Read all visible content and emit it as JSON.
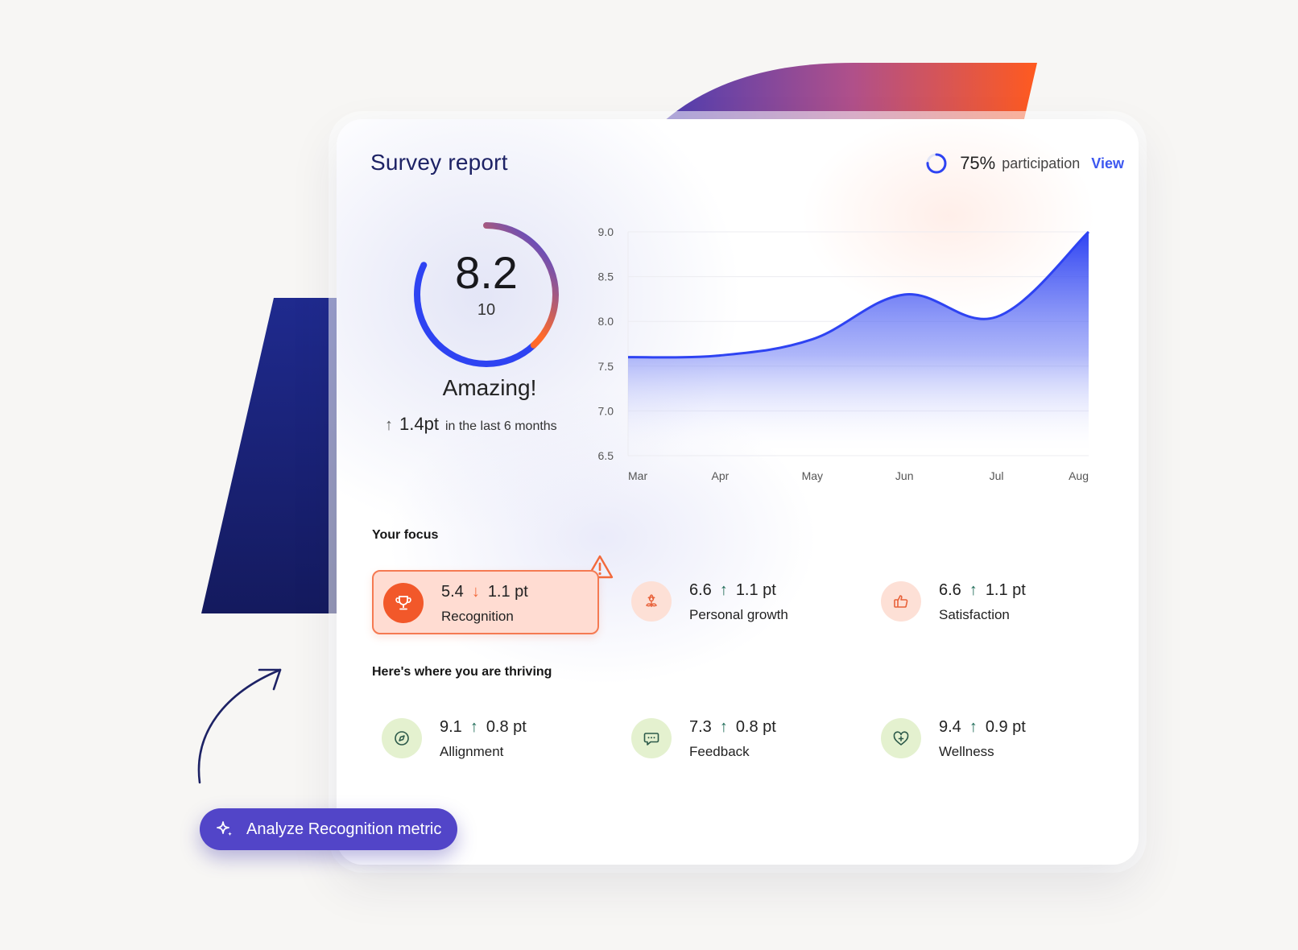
{
  "report": {
    "title": "Survey report",
    "participation": {
      "percent_label": "75%",
      "label": "participation",
      "view_label": "View",
      "value": 0.75
    }
  },
  "score": {
    "value": "8.2",
    "max": "10",
    "fraction": 0.82,
    "verdict": "Amazing!",
    "delta": "1.4pt",
    "delta_context": "in the last 6 months"
  },
  "chart_data": {
    "type": "area",
    "x": [
      "Mar",
      "Apr",
      "May",
      "Jun",
      "Jul",
      "Aug"
    ],
    "y": [
      7.6,
      7.62,
      7.8,
      8.3,
      8.05,
      9.0
    ],
    "ylim": [
      6.5,
      9.0
    ],
    "yticks": [
      "9.0",
      "8.5",
      "8.0",
      "7.5",
      "7.0",
      "6.5"
    ],
    "xlabel": "",
    "ylabel": "",
    "grid": true,
    "color": "#2e43f2"
  },
  "focus": {
    "title": "Your focus",
    "items": [
      {
        "value": "5.4",
        "delta": "1.1 pt",
        "direction": "down",
        "name": "Recognition",
        "icon": "trophy-icon",
        "alert": true
      },
      {
        "value": "6.6",
        "delta": "1.1 pt",
        "direction": "up",
        "name": "Personal growth",
        "icon": "flower-icon",
        "alert": false
      },
      {
        "value": "6.6",
        "delta": "1.1 pt",
        "direction": "up",
        "name": "Satisfaction",
        "icon": "thumbs-up-icon",
        "alert": false
      }
    ]
  },
  "thriving": {
    "title": "Here's where you are thriving",
    "items": [
      {
        "value": "9.1",
        "delta": "0.8 pt",
        "direction": "up",
        "name": "Allignment",
        "icon": "compass-icon"
      },
      {
        "value": "7.3",
        "delta": "0.8 pt",
        "direction": "up",
        "name": "Feedback",
        "icon": "chat-bubble-icon"
      },
      {
        "value": "9.4",
        "delta": "0.9 pt",
        "direction": "up",
        "name": "Wellness",
        "icon": "heart-plus-icon"
      }
    ]
  },
  "cta": {
    "label": "Analyze Recognition metric",
    "icon": "sparkle-icon"
  },
  "colors": {
    "accent_blue": "#2e43f2",
    "accent_orange": "#ff5a1f",
    "title_navy": "#1d2265",
    "up_green": "#1f6b57",
    "down_orange": "#f26a3c",
    "cta_purple": "#5245c8"
  }
}
